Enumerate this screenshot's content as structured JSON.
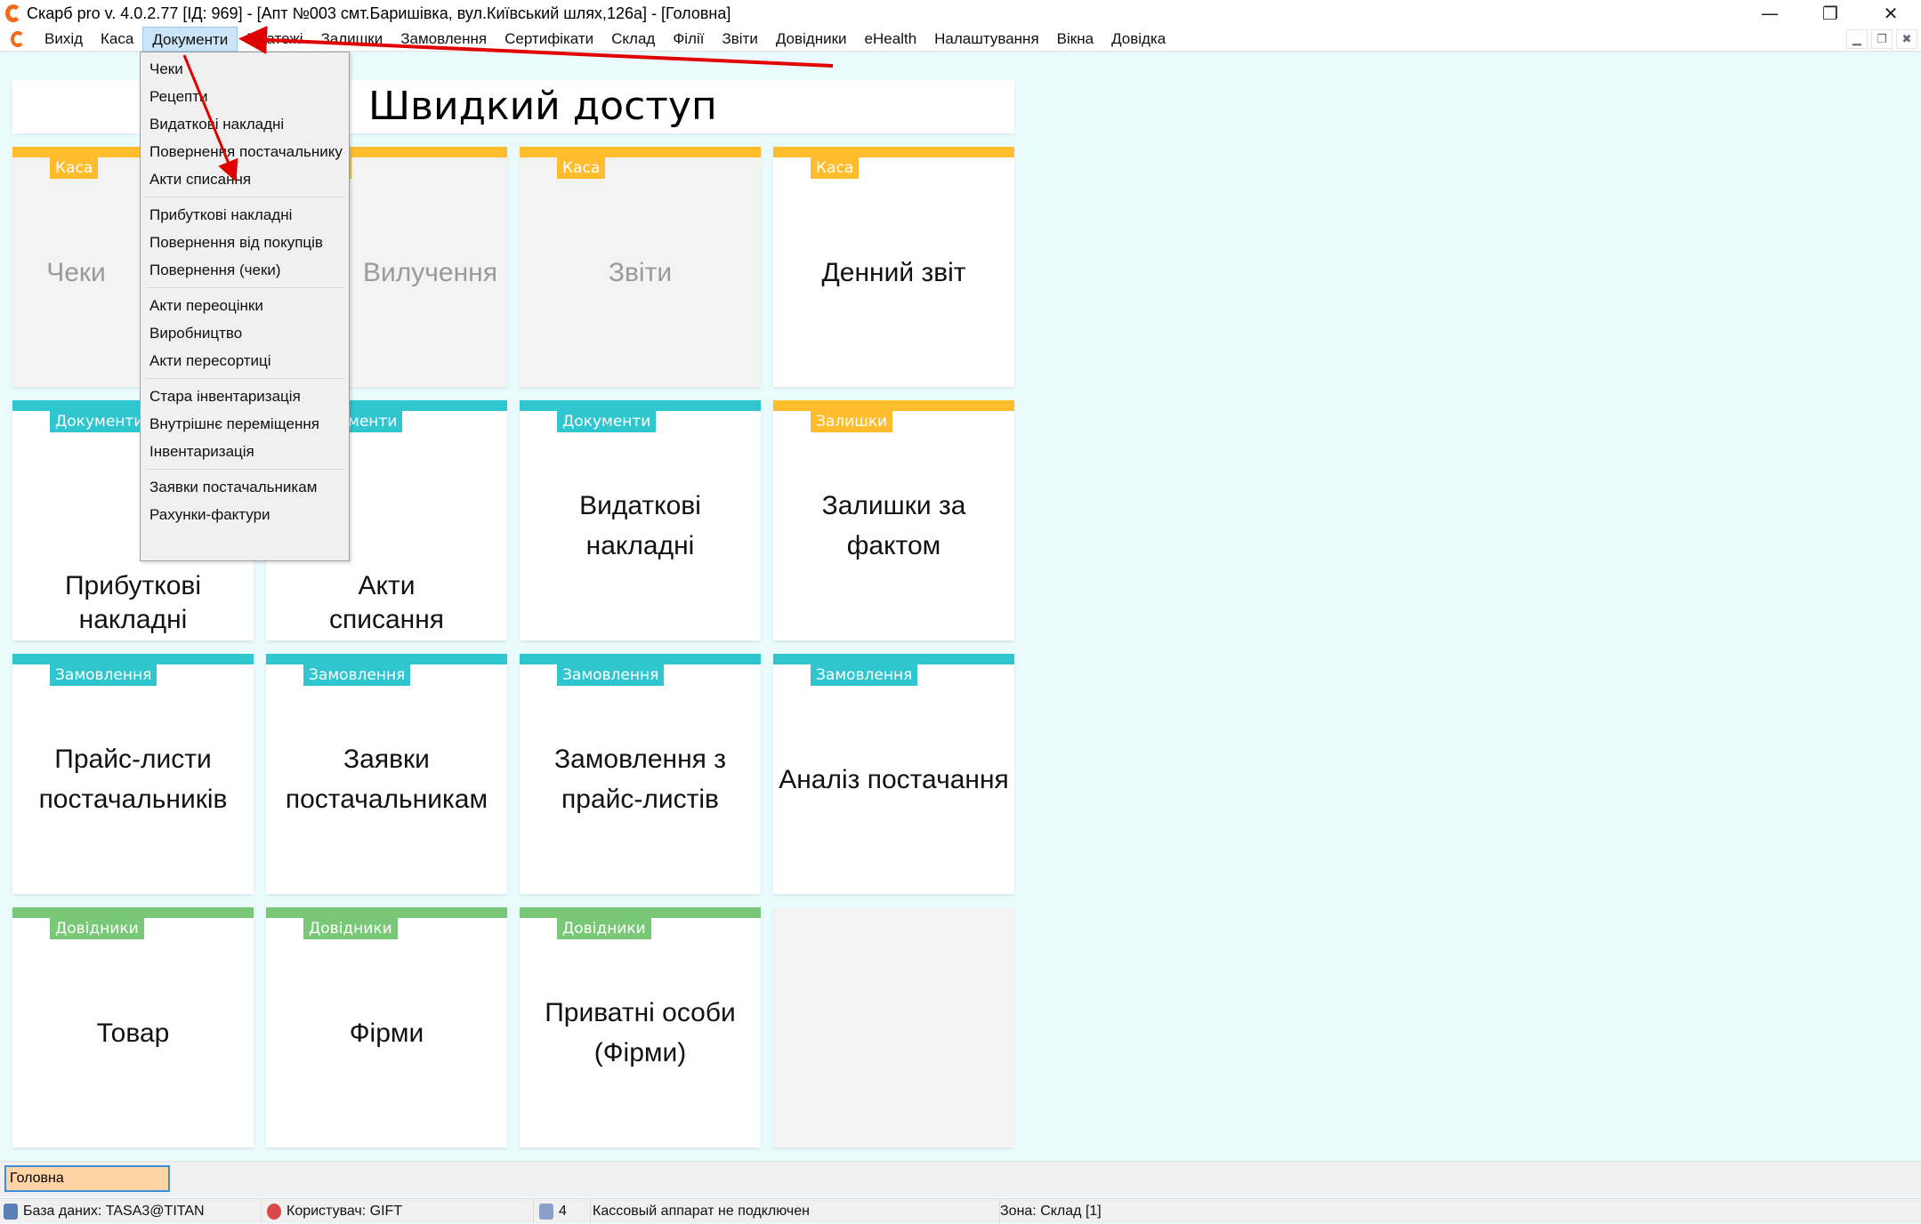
{
  "window": {
    "title": "Скарб pro v. 4.0.2.77 [ІД: 969] - [Апт №003 смт.Баришівка, вул.Київський шлях,126а] - [Головна]"
  },
  "menu": [
    "Вихід",
    "Каса",
    "Документи",
    "Платежі",
    "Залишки",
    "Замовлення",
    "Сертифікати",
    "Склад",
    "Філії",
    "Звіти",
    "Довідники",
    "eHealth",
    "Налаштування",
    "Вікна",
    "Довідка"
  ],
  "active_menu": "Документи",
  "dropdown": {
    "groups": [
      [
        "Чеки",
        "Рецепти",
        "Видаткові накладні",
        "Повернення постачальнику",
        "Акти списання"
      ],
      [
        "Прибуткові накладні",
        "Повернення від покупців",
        "Повернення (чеки)"
      ],
      [
        "Акти переоцінки",
        "Виробництво",
        "Акти пересортиці"
      ],
      [
        "Стара інвентаризація",
        "Внутрішнє переміщення",
        "Інвентаризація"
      ],
      [
        "Заявки постачальникам",
        "Рахунки-фактури"
      ]
    ]
  },
  "header": {
    "title": "Швидкий доступ"
  },
  "tiles": [
    {
      "tag": "Каса",
      "label": "Чеки",
      "style": "grey",
      "color": "#ffbd2e"
    },
    {
      "tag": "Каса",
      "label": "Вилучення",
      "style": "grey",
      "color": "#ffbd2e"
    },
    {
      "tag": "Каса",
      "label": "Звіти",
      "style": "grey",
      "color": "#ffbd2e"
    },
    {
      "tag": "Каса",
      "label": "Денний звіт",
      "style": "",
      "color": "#ffbd2e"
    },
    {
      "tag": "Документи",
      "label": "Прибуткові\nнакладні",
      "style": "teal",
      "color": "#2fc6d0"
    },
    {
      "tag": "Документи",
      "label": "Акти\nсписання",
      "style": "teal",
      "color": "#2fc6d0"
    },
    {
      "tag": "Документи",
      "label": "Видаткові\nнакладні",
      "style": "teal",
      "color": "#2fc6d0"
    },
    {
      "tag": "Залишки",
      "label": "Залишки за\nфактом",
      "style": "",
      "color": "#ffbd2e"
    },
    {
      "tag": "Замовлення",
      "label": "Прайс-листи\nпостачальників",
      "style": "teal",
      "color": "#2fc6d0"
    },
    {
      "tag": "Замовлення",
      "label": "Заявки\nпостачальникам",
      "style": "teal",
      "color": "#2fc6d0"
    },
    {
      "tag": "Замовлення",
      "label": "Замовлення з\nпрайс-листів",
      "style": "teal",
      "color": "#2fc6d0"
    },
    {
      "tag": "Замовлення",
      "label": "Аналіз постачання",
      "style": "teal",
      "color": "#2fc6d0"
    },
    {
      "tag": "Довідники",
      "label": "Товар",
      "style": "green",
      "color": "#78c878"
    },
    {
      "tag": "Довідники",
      "label": "Фірми",
      "style": "green",
      "color": "#78c878"
    },
    {
      "tag": "Довідники",
      "label": "Приватні особи\n(Фірми)",
      "style": "green",
      "color": "#78c878"
    },
    {
      "tag": "",
      "label": "",
      "style": "none",
      "color": ""
    }
  ],
  "tabs": [
    "Головна"
  ],
  "status": {
    "db": "База даних: TASA3@TITAN",
    "user": "Користувач: GIFT",
    "count": "4",
    "cash": "Кассовый аппарат не подключен",
    "zone": "Зона: Склад [1]"
  },
  "annotation_color": "#e00000"
}
